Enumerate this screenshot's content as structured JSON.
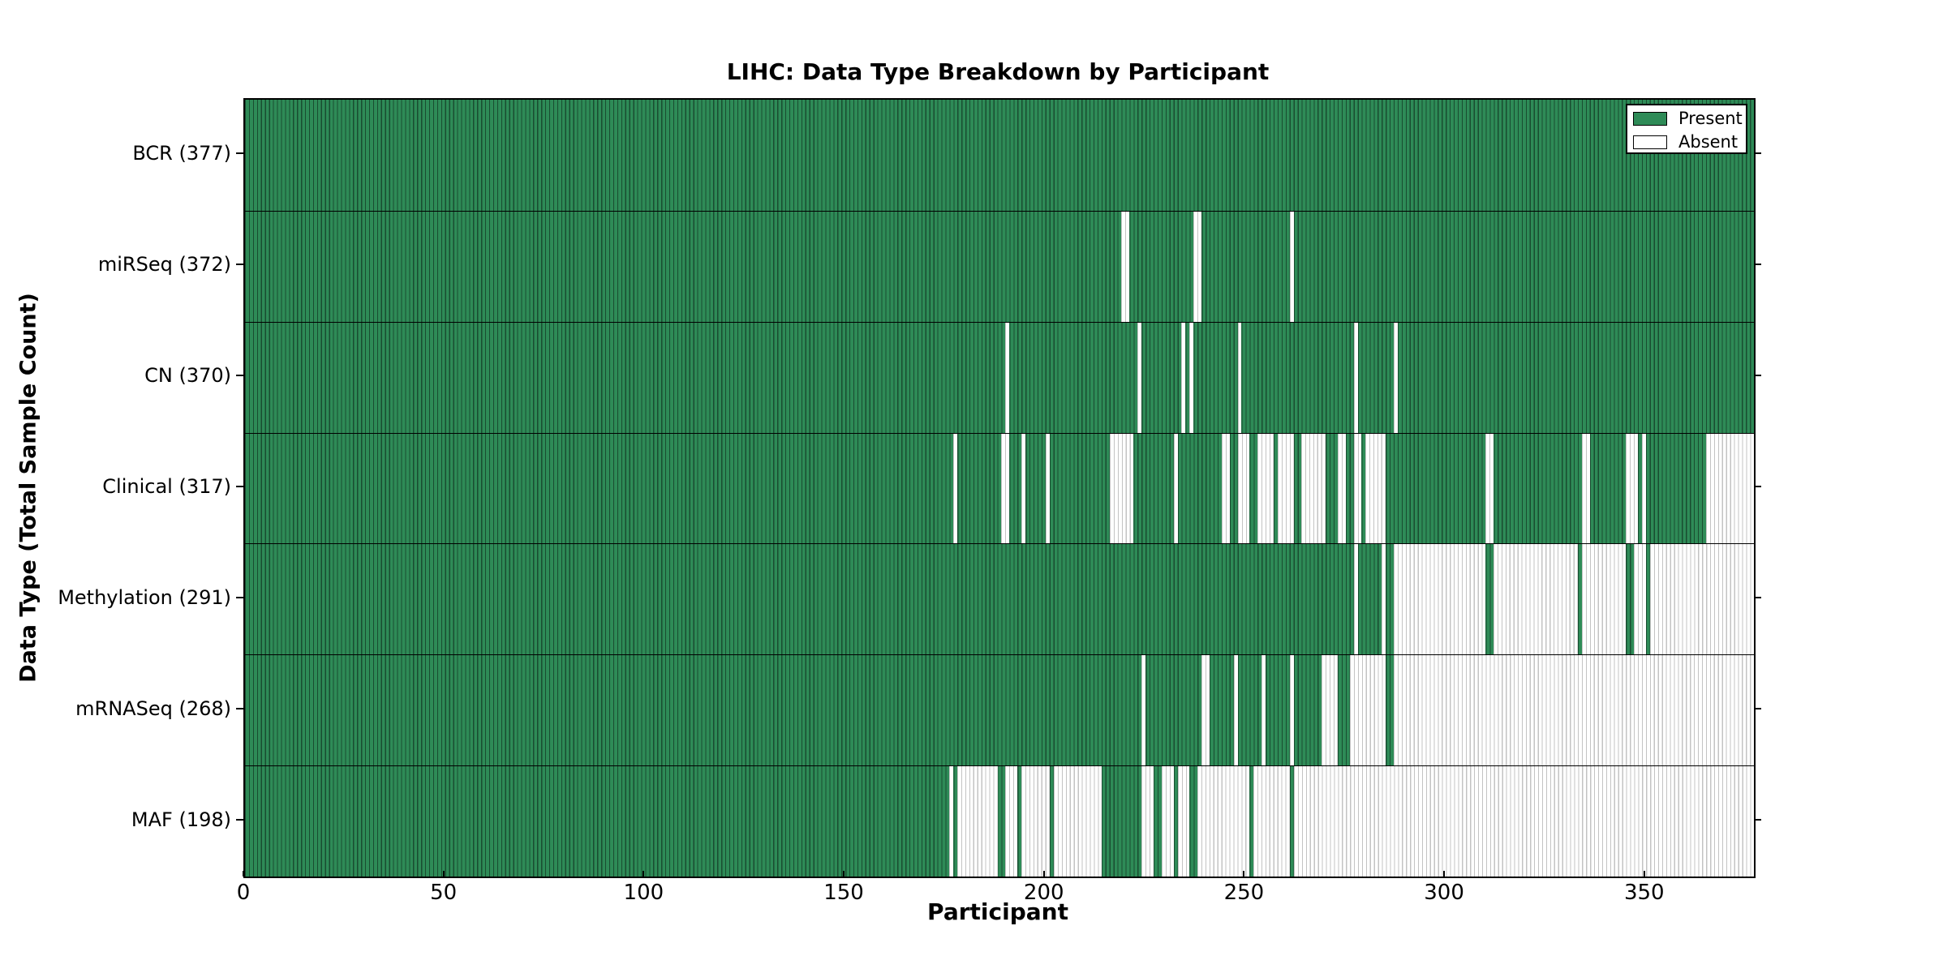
{
  "figure": {
    "title": "LIHC: Data Type Breakdown by Participant",
    "xlabel": "Participant",
    "ylabel": "Data Type (Total Sample Count)"
  },
  "legend": {
    "entries": [
      {
        "label": "Present",
        "kind": "present",
        "color": "#2e8b57"
      },
      {
        "label": "Absent",
        "kind": "absent",
        "color": "#ffffff"
      }
    ]
  },
  "colors": {
    "present_fill": "#2e8b57",
    "present_edge": "#1d5937",
    "absent_fill": "#ffffff",
    "absent_edge": "#c3c3c3",
    "axis": "#000000"
  },
  "chart_data": {
    "type": "heatmap",
    "title": "LIHC: Data Type Breakdown by Participant",
    "xlabel": "Participant",
    "ylabel": "Data Type (Total Sample Count)",
    "legend": [
      "Present",
      "Absent"
    ],
    "legend_position": "upper right",
    "grid": false,
    "xlim": [
      0,
      377
    ],
    "x_ticks": [
      0,
      50,
      100,
      150,
      200,
      250,
      300,
      350
    ],
    "n_participants": 377,
    "value_encoding": "green = data type present for participant, white = absent; participants sorted by data completeness",
    "rows": [
      {
        "label": "BCR (377)",
        "name": "BCR",
        "present_count": 377,
        "absent_ranges": []
      },
      {
        "label": "miRSeq (372)",
        "name": "miRSeq",
        "present_count": 372,
        "absent_ranges": [
          [
            219,
            220
          ],
          [
            237,
            238
          ],
          [
            261,
            261
          ]
        ]
      },
      {
        "label": "CN (370)",
        "name": "CN",
        "present_count": 370,
        "absent_ranges": [
          [
            190,
            190
          ],
          [
            223,
            223
          ],
          [
            234,
            234
          ],
          [
            236,
            236
          ],
          [
            248,
            248
          ],
          [
            277,
            277
          ],
          [
            287,
            287
          ]
        ]
      },
      {
        "label": "Clinical (317)",
        "name": "Clinical",
        "present_count": 317,
        "absent_ranges": [
          [
            177,
            177
          ],
          [
            189,
            190
          ],
          [
            194,
            194
          ],
          [
            200,
            200
          ],
          [
            216,
            221
          ],
          [
            232,
            232
          ],
          [
            244,
            245
          ],
          [
            248,
            250
          ],
          [
            253,
            256
          ],
          [
            258,
            261
          ],
          [
            264,
            269
          ],
          [
            273,
            274
          ],
          [
            277,
            278
          ],
          [
            280,
            284
          ],
          [
            310,
            311
          ],
          [
            334,
            335
          ],
          [
            345,
            347
          ],
          [
            349,
            349
          ],
          [
            365,
            376
          ]
        ]
      },
      {
        "label": "Methylation (291)",
        "name": "Methylation",
        "present_count": 291,
        "absent_ranges": [
          [
            277,
            277
          ],
          [
            284,
            284
          ],
          [
            287,
            309
          ],
          [
            312,
            332
          ],
          [
            334,
            344
          ],
          [
            347,
            349
          ],
          [
            351,
            376
          ]
        ]
      },
      {
        "label": "mRNASeq (268)",
        "name": "mRNASeq",
        "present_count": 268,
        "absent_ranges": [
          [
            224,
            224
          ],
          [
            239,
            240
          ],
          [
            247,
            247
          ],
          [
            254,
            254
          ],
          [
            261,
            261
          ],
          [
            269,
            272
          ],
          [
            276,
            284
          ],
          [
            287,
            376
          ]
        ]
      },
      {
        "label": "MAF (198)",
        "name": "MAF",
        "present_count": 198,
        "absent_ranges": [
          [
            176,
            176
          ],
          [
            178,
            187
          ],
          [
            190,
            192
          ],
          [
            194,
            200
          ],
          [
            202,
            213
          ],
          [
            224,
            226
          ],
          [
            229,
            231
          ],
          [
            233,
            235
          ],
          [
            238,
            250
          ],
          [
            252,
            260
          ],
          [
            262,
            376
          ]
        ]
      }
    ]
  }
}
